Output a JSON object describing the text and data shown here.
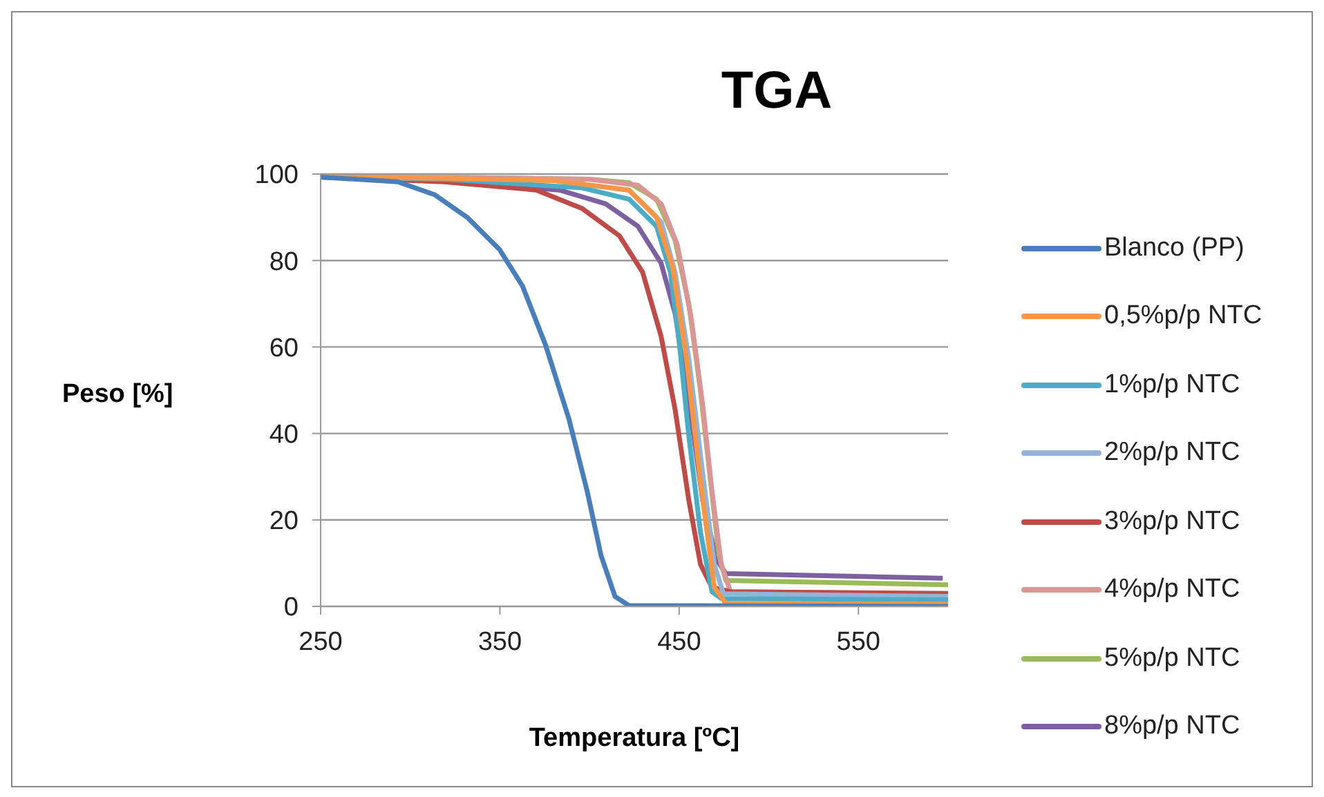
{
  "chart_data": {
    "type": "line",
    "title": "TGA",
    "xlabel": "Temperatura [ºC]",
    "ylabel": "Peso [%]",
    "xlim": [
      250,
      600
    ],
    "xticks": [
      250,
      350,
      450,
      550
    ],
    "ylim": [
      0,
      100
    ],
    "yticks": [
      0,
      20,
      40,
      60,
      80,
      100
    ],
    "grid": "y",
    "legend": "right",
    "marker": "none",
    "line_style": "solid",
    "series": [
      {
        "name": "Blanco (PP)",
        "color": "#4a7ebb",
        "x": [
          250,
          293,
          313.7,
          331.7,
          349.7,
          362.6,
          375.5,
          388.4,
          398.7,
          406.4,
          414.2,
          421.9,
          600
        ],
        "values": [
          99.3,
          98.2,
          95.2,
          90,
          82.6,
          74.1,
          60.4,
          43.5,
          26.6,
          11.8,
          2.3,
          0.2,
          0
        ]
      },
      {
        "name": "0,5%p/p NTC",
        "color": "#f79646",
        "x": [
          250,
          320,
          380,
          422,
          437.4,
          446.4,
          454.1,
          461.9,
          469.6,
          476,
          600
        ],
        "values": [
          99.3,
          99,
          98.5,
          96.3,
          90,
          78.4,
          57.2,
          28.7,
          4.4,
          0.7,
          0.5
        ]
      },
      {
        "name": "1%p/p NTC",
        "color": "#4bacc6",
        "x": [
          250,
          320,
          396,
          422,
          437.4,
          445.1,
          450.2,
          455.4,
          461.9,
          468.3,
          473.5,
          600
        ],
        "values": [
          99.3,
          98.8,
          96.8,
          94.2,
          87.9,
          77.3,
          60.4,
          39.3,
          17.1,
          3.4,
          1.8,
          1.5
        ]
      },
      {
        "name": "2%p/p NTC",
        "color": "#95b3d7",
        "x": [
          250,
          320,
          380,
          422,
          440,
          447.7,
          455.4,
          463.1,
          469.6,
          474.7,
          600
        ],
        "values": [
          99.3,
          99,
          98.5,
          96.3,
          88.9,
          77.3,
          57.2,
          30.8,
          9.7,
          2.9,
          2.3
        ]
      },
      {
        "name": "3%p/p NTC",
        "color": "#be4b48",
        "x": [
          250,
          318.8,
          370.3,
          396,
          416.7,
          429.6,
          439.9,
          447.7,
          455.4,
          461.9,
          468.3,
          478.6,
          600
        ],
        "values": [
          99.3,
          98.2,
          96.3,
          92,
          85.7,
          77.3,
          62.5,
          45.6,
          24.5,
          9.7,
          4.4,
          3.4,
          3
        ]
      },
      {
        "name": "4%p/p NTC",
        "color": "#d99694",
        "x": [
          250,
          330,
          400,
          427,
          440,
          449,
          456.7,
          463.1,
          468.3,
          473.5,
          478.6,
          600
        ],
        "values": [
          99.3,
          99.2,
          98.8,
          97.4,
          93.1,
          83.6,
          66.7,
          46.7,
          26.6,
          9.7,
          3.4,
          2.9
        ]
      },
      {
        "name": "5%p/p NTC",
        "color": "#9bbb59",
        "x": [
          250,
          330,
          400,
          422,
          437.4,
          447.7,
          455.4,
          461.9,
          467,
          472.2,
          476,
          600
        ],
        "values": [
          99.3,
          99.2,
          98.8,
          98,
          94.2,
          84.7,
          69.9,
          49.8,
          30.8,
          11.8,
          6,
          5
        ]
      },
      {
        "name": "8%p/p NTC",
        "color": "#7d60a0",
        "x": [
          250,
          318.8,
          383.2,
          409,
          427,
          439.9,
          447.7,
          455.4,
          463.1,
          470.9,
          476,
          499,
          597
        ],
        "values": [
          99.3,
          98.4,
          96.3,
          93.1,
          87.9,
          79.4,
          67.8,
          47.7,
          24.5,
          10.8,
          7.6,
          7.4,
          6.5
        ]
      }
    ]
  }
}
